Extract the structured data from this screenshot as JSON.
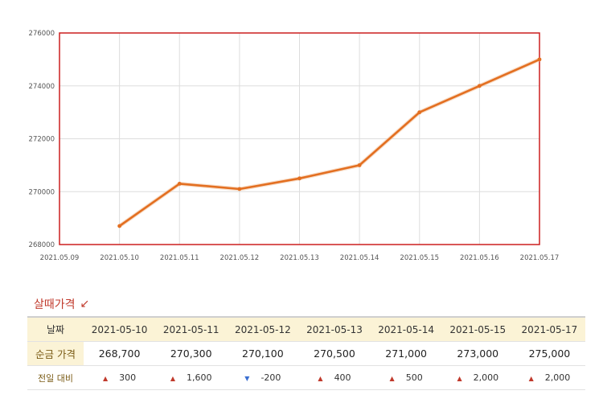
{
  "chart_data": {
    "type": "line",
    "x": [
      "2021.05.09",
      "2021.05.10",
      "2021.05.11",
      "2021.05.12",
      "2021.05.13",
      "2021.05.14",
      "2021.05.15",
      "2021.05.16",
      "2021.05.17"
    ],
    "series": [
      {
        "values": [
          null,
          268700,
          270300,
          270100,
          270500,
          271000,
          273000,
          274000,
          275000
        ]
      }
    ],
    "ylim": [
      268000,
      276000
    ],
    "yticks": [
      "268000",
      "270000",
      "272000",
      "274000",
      "276000"
    ],
    "grid": true,
    "colors": {
      "line": "#e36f21",
      "border": "#cc1f1f",
      "grid": "#dddddd"
    }
  },
  "table": {
    "title": "살때가격",
    "title_icon": "arrow-down-left-icon",
    "header_label": "날짜",
    "dates": [
      "2021-05-10",
      "2021-05-11",
      "2021-05-12",
      "2021-05-13",
      "2021-05-14",
      "2021-05-15",
      "2021-05-17"
    ],
    "price_label": "순금 가격",
    "prices": [
      "268,700",
      "270,300",
      "270,100",
      "270,500",
      "271,000",
      "273,000",
      "275,000"
    ],
    "change_label": "전일 대비",
    "changes": [
      {
        "value": "300",
        "dir": "up"
      },
      {
        "value": "1,600",
        "dir": "up"
      },
      {
        "value": "-200",
        "dir": "down"
      },
      {
        "value": "400",
        "dir": "up"
      },
      {
        "value": "500",
        "dir": "up"
      },
      {
        "value": "2,000",
        "dir": "up"
      },
      {
        "value": "2,000",
        "dir": "up"
      }
    ],
    "colors": {
      "up": "#c0392b",
      "down": "#3b6fd1"
    }
  }
}
